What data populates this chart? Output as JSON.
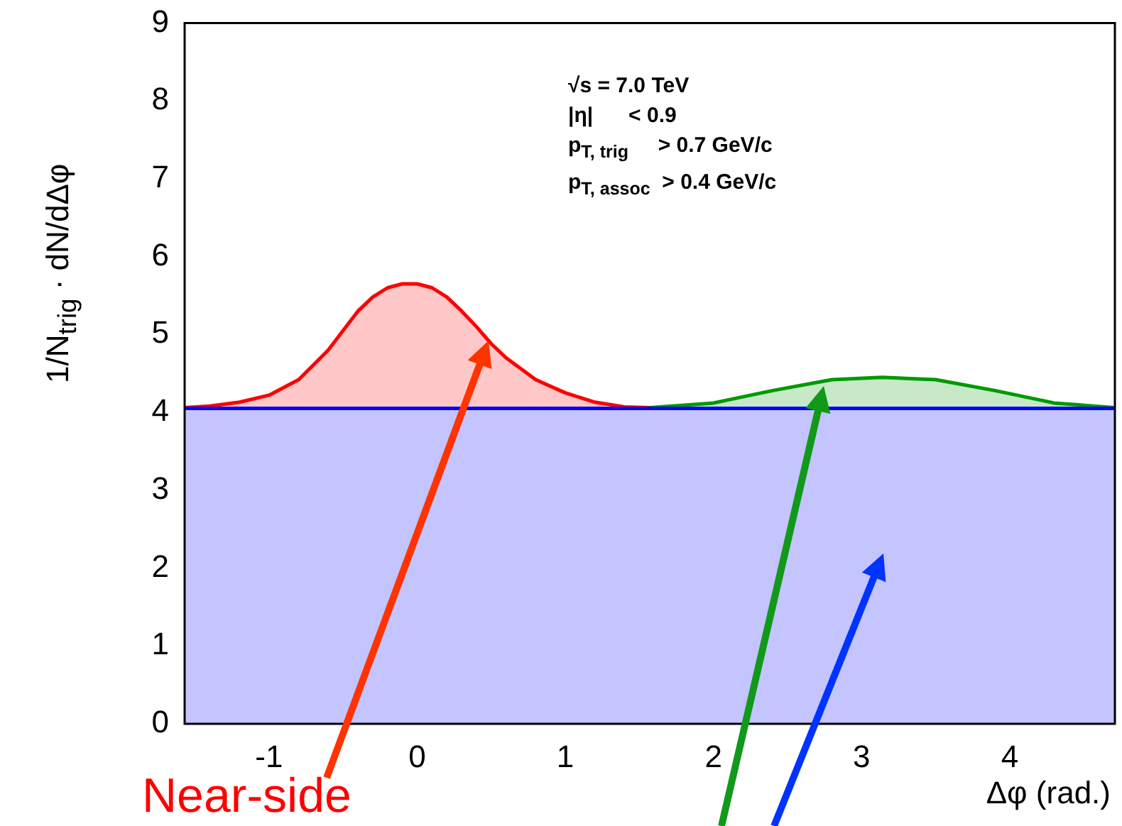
{
  "chart_data": {
    "type": "area",
    "xlabel": "Δφ (rad.)",
    "ylabel": "1/N$_{trig}$ · dN/dΔφ",
    "xlim": [
      -1.57,
      4.71
    ],
    "ylim": [
      0,
      9
    ],
    "xticks": [
      -1,
      0,
      1,
      2,
      3,
      4
    ],
    "yticks": [
      0,
      1,
      2,
      3,
      4,
      5,
      6,
      7,
      8,
      9
    ],
    "series": [
      {
        "color": "#0000ff",
        "x": [
          -1.57,
          4.71
        ],
        "values": [
          4.05,
          4.05
        ]
      },
      {
        "color": "#ff0000",
        "x": [
          -1.57,
          -1.4,
          -1.2,
          -1.0,
          -0.8,
          -0.6,
          -0.5,
          -0.4,
          -0.3,
          -0.2,
          -0.1,
          0,
          0.1,
          0.2,
          0.3,
          0.4,
          0.5,
          0.6,
          0.8,
          1.0,
          1.2,
          1.4,
          1.57
        ],
        "values": [
          4.06,
          4.08,
          4.13,
          4.22,
          4.42,
          4.8,
          5.05,
          5.3,
          5.48,
          5.6,
          5.65,
          5.65,
          5.6,
          5.48,
          5.3,
          5.1,
          4.88,
          4.7,
          4.42,
          4.25,
          4.13,
          4.07,
          4.06
        ]
      },
      {
        "color": "#009900",
        "x": [
          1.57,
          2.0,
          2.4,
          2.8,
          3.14,
          3.5,
          3.9,
          4.3,
          4.71
        ],
        "values": [
          4.06,
          4.12,
          4.28,
          4.42,
          4.45,
          4.42,
          4.28,
          4.12,
          4.06
        ]
      }
    ],
    "annotations": [
      "√s = 7.0 TeV",
      "|η|      < 0.9",
      "p$_{T, trig}$     > 0.7 GeV/c",
      "p$_{T, assoc}$  > 0.4 GeV/c",
      "Near-side"
    ]
  }
}
